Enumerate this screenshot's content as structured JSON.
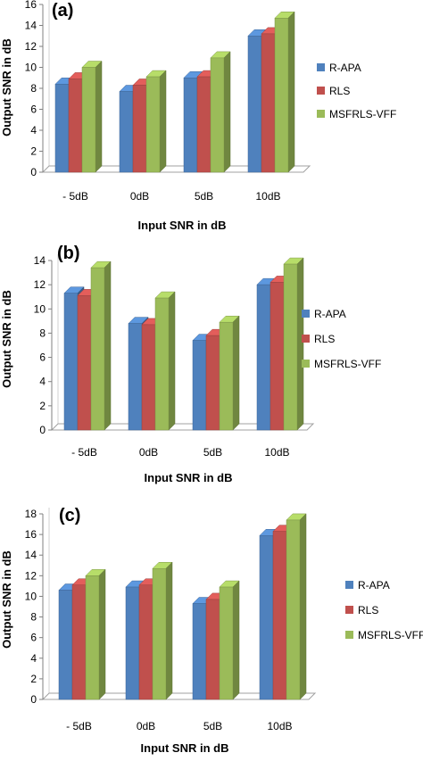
{
  "colors": {
    "R-APA": "#4f81bd",
    "RLS": "#c0504d",
    "MSFRLS-VFF": "#9bbb59"
  },
  "chart_data": [
    {
      "panel_label": "(a)",
      "type": "bar",
      "categories": [
        "- 5dB",
        "0dB",
        "5dB",
        "10dB"
      ],
      "series": [
        {
          "name": "R-APA",
          "values": [
            8.4,
            7.7,
            9.0,
            13.0
          ]
        },
        {
          "name": "RLS",
          "values": [
            8.9,
            8.3,
            9.1,
            13.2
          ]
        },
        {
          "name": "MSFRLS-VFF",
          "values": [
            10.0,
            9.1,
            10.9,
            14.7
          ]
        }
      ],
      "xlabel": "Input SNR in dB",
      "ylabel": "Output SNR  in dB",
      "ylim": [
        0,
        16
      ],
      "yticks": [
        0,
        2,
        4,
        6,
        8,
        10,
        12,
        14,
        16
      ],
      "legend_position": "right",
      "grid": false
    },
    {
      "panel_label": "(b)",
      "type": "bar",
      "categories": [
        "- 5dB",
        "0dB",
        "5dB",
        "10dB"
      ],
      "series": [
        {
          "name": "R-APA",
          "values": [
            11.3,
            8.8,
            7.4,
            12.0
          ]
        },
        {
          "name": "RLS",
          "values": [
            11.1,
            8.7,
            7.8,
            12.2
          ]
        },
        {
          "name": "MSFRLS-VFF",
          "values": [
            13.4,
            10.9,
            8.9,
            13.7
          ]
        }
      ],
      "xlabel": "Input SNR in dB",
      "ylabel": "Output SNR  in dB",
      "ylim": [
        0,
        14
      ],
      "yticks": [
        0,
        2,
        4,
        6,
        8,
        10,
        12,
        14
      ],
      "legend_position": "right",
      "grid": false
    },
    {
      "panel_label": "(c)",
      "type": "bar",
      "categories": [
        "- 5dB",
        "0dB",
        "5dB",
        "10dB"
      ],
      "series": [
        {
          "name": "R-APA",
          "values": [
            10.6,
            10.9,
            9.3,
            15.9
          ]
        },
        {
          "name": "RLS",
          "values": [
            11.1,
            11.1,
            9.7,
            16.3
          ]
        },
        {
          "name": "MSFRLS-VFF",
          "values": [
            12.0,
            12.7,
            10.9,
            17.4
          ]
        }
      ],
      "xlabel": "Input SNR in dB",
      "ylabel": "Output SNR  in dB",
      "ylim": [
        0,
        18
      ],
      "yticks": [
        0,
        2,
        4,
        6,
        8,
        10,
        12,
        14,
        16,
        18
      ],
      "legend_position": "right",
      "grid": false
    }
  ]
}
